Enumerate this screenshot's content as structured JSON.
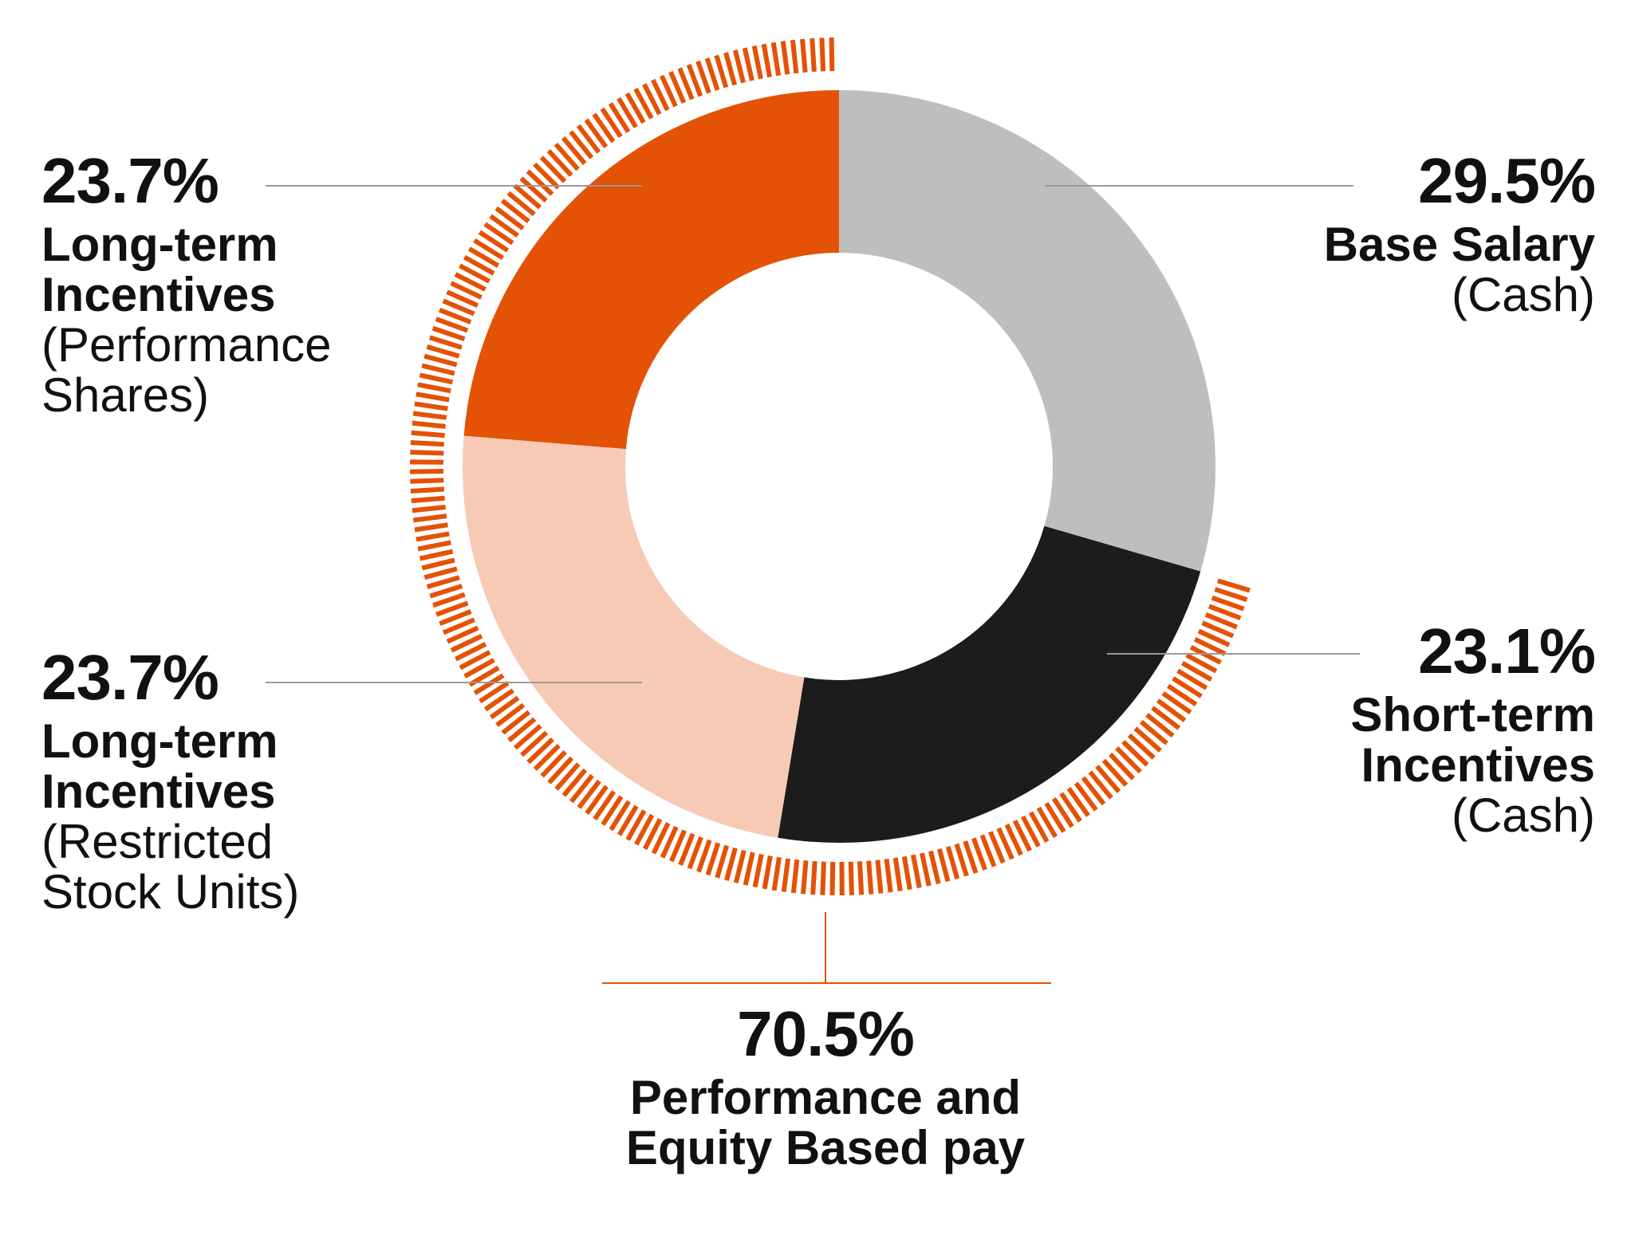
{
  "chart_data": {
    "type": "pie",
    "variant": "donut",
    "title": "",
    "slices": [
      {
        "percent_label": "29.5%",
        "value": 29.5,
        "name_lines": [
          "Base Salary"
        ],
        "sub_lines": [
          "(Cash)"
        ],
        "color": "#bebebe"
      },
      {
        "percent_label": "23.1%",
        "value": 23.1,
        "name_lines": [
          "Short-term",
          "Incentives"
        ],
        "sub_lines": [
          "(Cash)"
        ],
        "color": "#1c1c1c"
      },
      {
        "percent_label": "23.7%",
        "value": 23.7,
        "name_lines": [
          "Long-term",
          "Incentives"
        ],
        "sub_lines": [
          "(Restricted",
          "Stock Units)"
        ],
        "color": "#f6cab5"
      },
      {
        "percent_label": "23.7%",
        "value": 23.7,
        "name_lines": [
          "Long-term",
          "Incentives"
        ],
        "sub_lines": [
          "(Performance",
          "Shares)"
        ],
        "color": "#e35205"
      }
    ],
    "group": {
      "percent_label": "70.5%",
      "value": 70.5,
      "label_lines": [
        "Performance and",
        "Equity Based pay"
      ],
      "color": "#e35205"
    }
  },
  "colors": {
    "accent": "#e35205",
    "leader_line": "#9a9a9a",
    "text": "#111111"
  }
}
